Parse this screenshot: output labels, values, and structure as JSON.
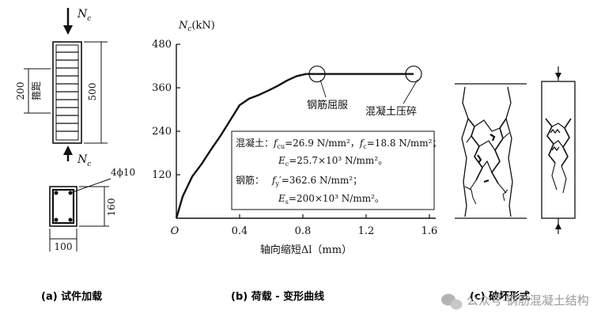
{
  "panel_a": {
    "load_label": "N",
    "load_sub": "c",
    "dim_200": "200",
    "spacing_label": "箍距",
    "dim_500": "500",
    "rebar_label": "4ϕ10",
    "dim_160": "160",
    "dim_100": "100",
    "caption": "(a)  试件加载"
  },
  "chart_data": {
    "type": "line",
    "title": "",
    "ylabel_main": "N",
    "ylabel_sub": "c",
    "ylabel_unit": "(kN)",
    "xlabel": "轴向缩短Δl（mm）",
    "xlim": [
      0,
      1.6
    ],
    "ylim": [
      0,
      480
    ],
    "xticks": [
      "O",
      "0.4",
      "0.8",
      "1.2",
      "1.6"
    ],
    "xtick_values": [
      0,
      0.4,
      0.8,
      1.2,
      1.6
    ],
    "yticks": [
      "120",
      "240",
      "360",
      "480"
    ],
    "ytick_values": [
      120,
      240,
      360,
      480
    ],
    "series": [
      {
        "name": "荷载-变形曲线",
        "x": [
          0,
          0.04,
          0.1,
          0.16,
          0.22,
          0.28,
          0.34,
          0.4,
          0.46,
          0.52,
          0.58,
          0.64,
          0.7,
          0.76,
          0.82,
          0.88,
          0.95,
          1.1,
          1.3,
          1.5
        ],
        "y": [
          0,
          60,
          115,
          150,
          190,
          228,
          270,
          312,
          330,
          340,
          352,
          365,
          380,
          392,
          398,
          398,
          398,
          398,
          398,
          398
        ]
      }
    ],
    "markers": [
      {
        "x": 0.89,
        "y": 398,
        "label": "钢筋屈服"
      },
      {
        "x": 1.5,
        "y": 398,
        "label": "混凝土压碎"
      }
    ],
    "annotation": {
      "concrete_prefix": "混凝土：",
      "fcu_sym": "f",
      "fcu_sub": "cu",
      "fcu_val": "=26.9 N/mm²，",
      "fc_sym": "f",
      "fc_sub": "c",
      "fc_val": "=18.8 N/mm²；",
      "ec_sym": "E",
      "ec_sub": "c",
      "ec_val": "=25.7×10³ N/mm²。",
      "steel_prefix": "钢筋：",
      "fy_sym": "f",
      "fy_sub": "y",
      "fy_val": "′=362.6 N/mm²；",
      "es_sym": "E",
      "es_sub": "s",
      "es_val": "=200×10³ N/mm²。"
    },
    "caption": "(b)  荷载 - 变形曲线"
  },
  "panel_c": {
    "caption": "(c)  破坏形式"
  },
  "watermark": "公众号·钢筋混凝土结构",
  "colors": {
    "ink": "#111111",
    "watermark": "#9a9a9a"
  }
}
